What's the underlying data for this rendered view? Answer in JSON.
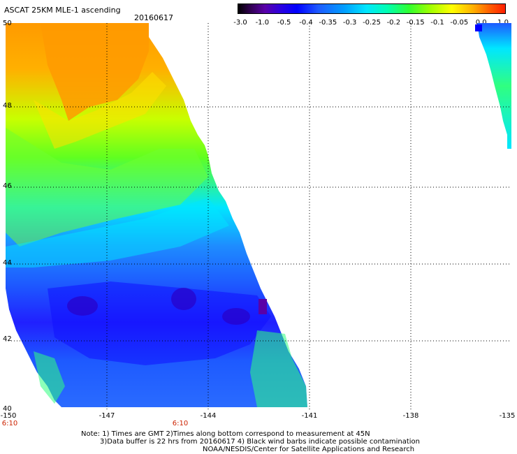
{
  "header": {
    "title": "ASCAT 25KM MLE-1 ascending",
    "date": "20160617"
  },
  "colorbar": {
    "ticks": [
      "-3.0",
      "-1.0",
      "-0.5",
      "-0.4",
      "-0.35",
      "-0.3",
      "-0.25",
      "-0.2",
      "-0.15",
      "-0.1",
      "-0.05",
      "0.0",
      "1.0"
    ],
    "colors": [
      "#000000",
      "#5a00a8",
      "#0000ff",
      "#1e5aff",
      "#00a0ff",
      "#00e6ff",
      "#00ff80",
      "#60ff00",
      "#c8ff00",
      "#ffd800",
      "#ff9000",
      "#ff1e00"
    ]
  },
  "map": {
    "lat_labels": [
      "50",
      "48",
      "46",
      "44",
      "42",
      "40"
    ],
    "lon_labels": [
      "-150",
      "-147",
      "-144",
      "-141",
      "-138",
      "-135"
    ],
    "time_labels": [
      "6:10",
      "6:10"
    ],
    "grid": true,
    "data_regions": [
      {
        "name": "main swath",
        "extent_lon": [
          -150,
          -141
        ],
        "extent_lat": [
          40,
          50
        ],
        "dominant_values": "orange/yellow in north, green mid, blue/purple south"
      },
      {
        "name": "east swath edge",
        "extent_lon": [
          -135.4,
          -134.8
        ],
        "extent_lat": [
          46.4,
          50
        ]
      }
    ]
  },
  "notes": {
    "line1": "Note: 1) Times are GMT 2)Times along bottom correspond to measurement at 45N",
    "line2": "3)Data buffer is 22 hrs from 20160617 4) Black wind barbs indicate possible contamination",
    "line3": "NOAA/NESDIS/Center for Satellite Applications and Research"
  }
}
